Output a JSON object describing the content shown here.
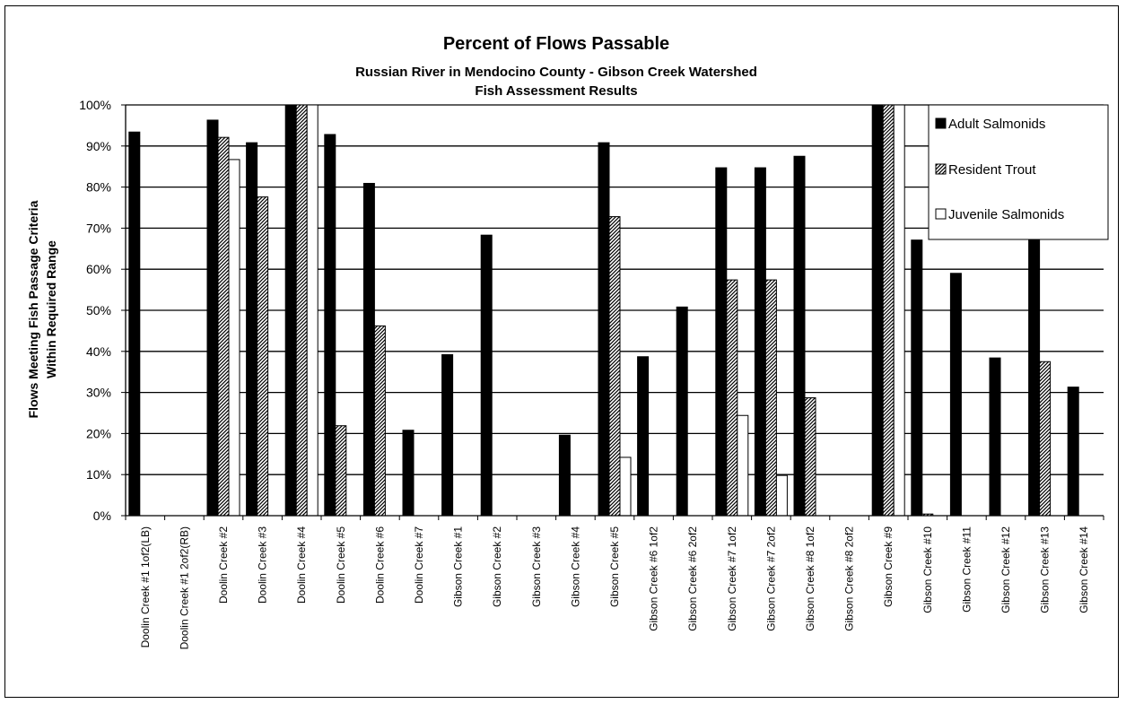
{
  "chart_data": {
    "type": "bar",
    "title": "Percent of Flows Passable",
    "subtitle_lines": [
      "Russian River in Mendocino County - Gibson Creek Watershed",
      "Fish Assessment Results"
    ],
    "ylabel_lines": [
      "Flows Meeting Fish Passage Criteria",
      "Within Required Range"
    ],
    "xlabel": "",
    "ylim": [
      0,
      100
    ],
    "ytick_step": 10,
    "ytick_suffix": "%",
    "grid": true,
    "legend_position": "top-right",
    "categories": [
      "Doolin Creek #1 1of2(LB)",
      "Doolin Creek #1 2of2(RB)",
      "Doolin Creek #2",
      "Doolin Creek #3",
      "Doolin Creek #4",
      "Doolin Creek #5",
      "Doolin Creek #6",
      "Doolin Creek #7",
      "Gibson Creek #1",
      "Gibson Creek #2",
      "Gibson Creek #3",
      "Gibson Creek #4",
      "Gibson Creek #5",
      "Gibson Creek #6 1of2",
      "Gibson Creek #6 2of2",
      "Gibson Creek #7 1of2",
      "Gibson Creek #7 2of2",
      "Gibson Creek #8 1of2",
      "Gibson Creek #8 2of2",
      "Gibson Creek #9",
      "Gibson Creek #10",
      "Gibson Creek #11",
      "Gibson Creek #12",
      "Gibson Creek #13",
      "Gibson Creek #14"
    ],
    "series": [
      {
        "name": "Adult Salmonids",
        "style": "solid",
        "color": "#000000",
        "values": [
          93.4,
          0,
          96.3,
          90.8,
          100,
          92.8,
          80.9,
          20.8,
          39.2,
          68.3,
          0,
          19.6,
          90.8,
          38.7,
          50.8,
          84.7,
          84.7,
          87.5,
          0,
          100,
          67.1,
          59.0,
          38.4,
          68.0,
          31.3
        ]
      },
      {
        "name": "Resident Trout",
        "style": "hatched",
        "color": "#000000",
        "values": [
          0,
          0,
          92.1,
          77.6,
          100,
          21.9,
          46.2,
          0,
          0,
          0,
          0,
          0,
          72.8,
          0,
          0,
          57.4,
          57.4,
          28.7,
          0,
          100,
          0.4,
          0,
          0,
          37.5,
          0
        ]
      },
      {
        "name": "Juvenile Salmonids",
        "style": "open",
        "color": "#ffffff",
        "values": [
          0,
          0,
          86.7,
          0,
          100,
          0,
          0,
          0,
          0,
          0,
          0,
          0,
          14.2,
          0,
          0,
          24.4,
          9.8,
          0,
          0,
          100,
          0,
          0,
          0,
          0,
          0
        ]
      }
    ]
  }
}
